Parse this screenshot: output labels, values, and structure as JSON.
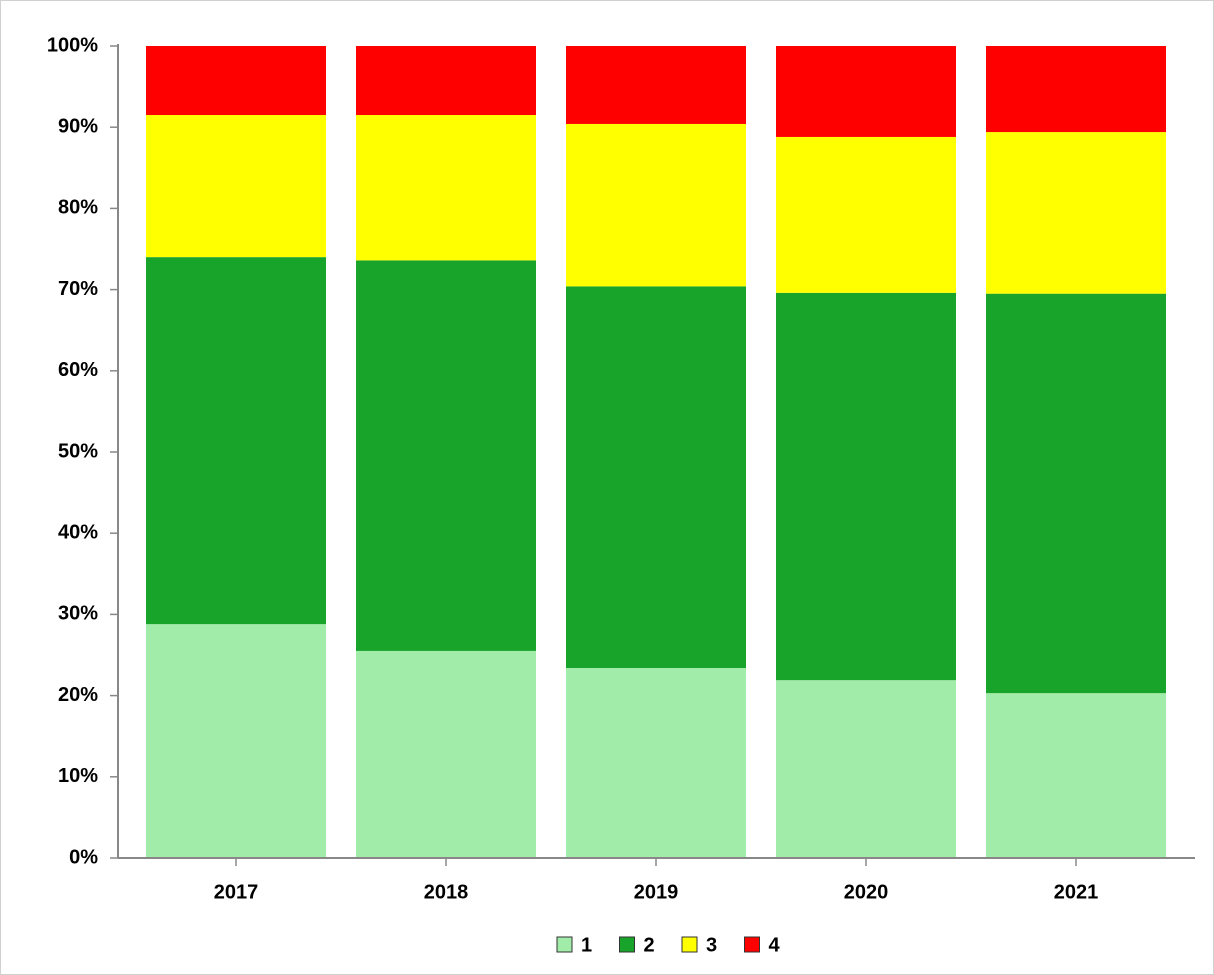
{
  "chart_data": {
    "type": "stacked_bar",
    "categories": [
      "2017",
      "2018",
      "2019",
      "2020",
      "2021"
    ],
    "series": [
      {
        "name": "1",
        "color": "#a0eca8",
        "values": [
          28.8,
          25.5,
          23.4,
          21.9,
          20.3
        ]
      },
      {
        "name": "2",
        "color": "#18a42a",
        "values": [
          45.2,
          48.1,
          47.0,
          47.7,
          49.2
        ]
      },
      {
        "name": "3",
        "color": "#ffff00",
        "values": [
          17.5,
          17.9,
          20.0,
          19.2,
          19.9
        ]
      },
      {
        "name": "4",
        "color": "#ff0000",
        "values": [
          8.5,
          8.5,
          9.6,
          11.2,
          10.6
        ]
      }
    ],
    "ylim": [
      0,
      100
    ],
    "yticks": [
      {
        "value": 0,
        "label": "0%"
      },
      {
        "value": 10,
        "label": "10%"
      },
      {
        "value": 20,
        "label": "20%"
      },
      {
        "value": 30,
        "label": "30%"
      },
      {
        "value": 40,
        "label": "40%"
      },
      {
        "value": 50,
        "label": "50%"
      },
      {
        "value": 60,
        "label": "60%"
      },
      {
        "value": 70,
        "label": "70%"
      },
      {
        "value": 80,
        "label": "80%"
      },
      {
        "value": 90,
        "label": "90%"
      },
      {
        "value": 100,
        "label": "100%"
      }
    ],
    "legend": "bottom"
  }
}
